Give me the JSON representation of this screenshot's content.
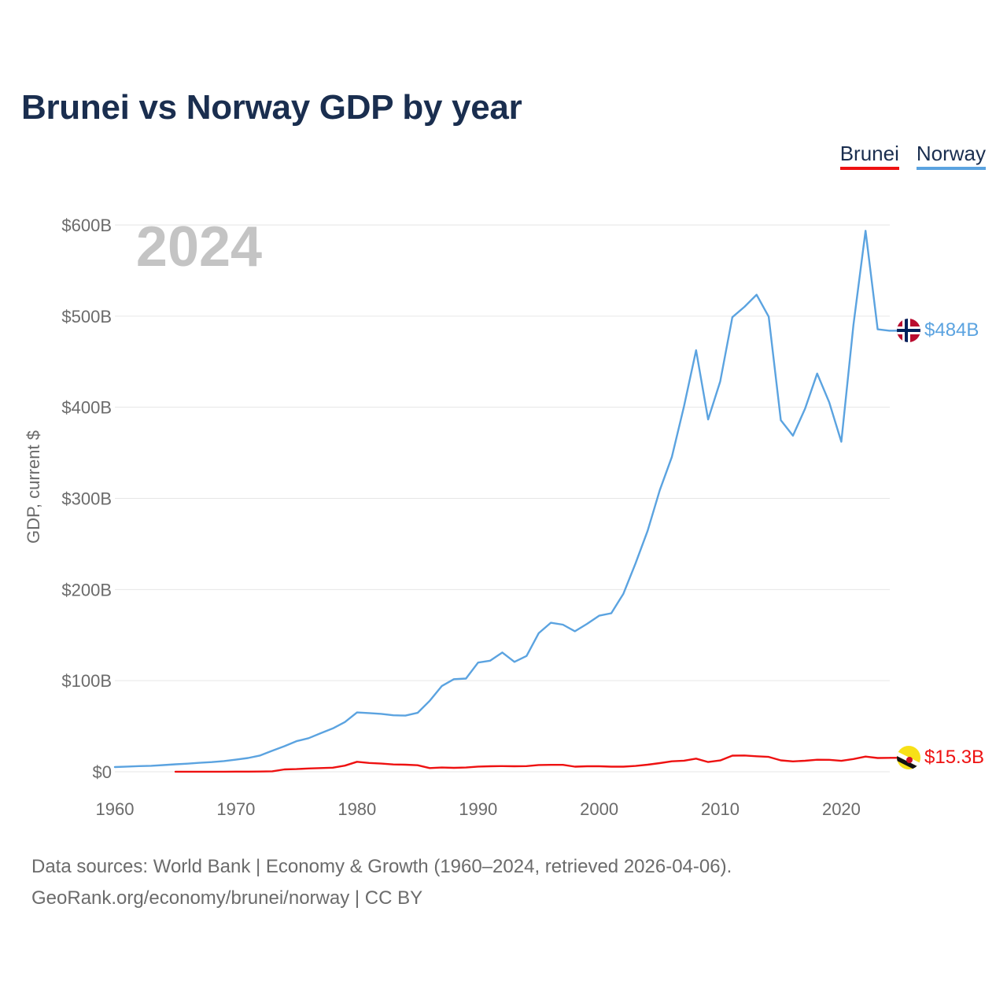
{
  "title": "Brunei vs Norway GDP by year",
  "legend": {
    "brunei": "Brunei",
    "norway": "Norway"
  },
  "footer": {
    "line1": "Data sources: World Bank | Economy & Growth (1960–2024, retrieved 2026-04-06).",
    "line2": "GeoRank.org/economy/brunei/norway | CC BY"
  },
  "colors": {
    "brunei": "#ee1111",
    "norway": "#5ba3e0",
    "grid": "#e6e6e6",
    "text": "#6b6b6b",
    "year": "#c4c4c4"
  },
  "chart_data": {
    "type": "line",
    "title": "Brunei vs Norway GDP by year",
    "year_label": "2024",
    "ylabel": "GDP, current $",
    "xlabel": "",
    "xlim": [
      1960,
      2024
    ],
    "ylim": [
      0,
      600
    ],
    "x_ticks": [
      1960,
      1970,
      1980,
      1990,
      2000,
      2010,
      2020
    ],
    "x_tick_labels": [
      "1960",
      "1970",
      "1980",
      "1990",
      "2000",
      "2010",
      "2020"
    ],
    "y_ticks": [
      0,
      100,
      200,
      300,
      400,
      500,
      600
    ],
    "y_tick_labels": [
      "$0",
      "$100B",
      "$200B",
      "$300B",
      "$400B",
      "$500B",
      "$600B"
    ],
    "units": "billions of current US$",
    "series": [
      {
        "key": "norway",
        "name": "Norway",
        "end_label": "$484B",
        "icon": "norway-flag-icon",
        "x": [
          1960,
          1961,
          1962,
          1963,
          1964,
          1965,
          1966,
          1967,
          1968,
          1969,
          1970,
          1971,
          1972,
          1973,
          1974,
          1975,
          1976,
          1977,
          1978,
          1979,
          1980,
          1981,
          1982,
          1983,
          1984,
          1985,
          1986,
          1987,
          1988,
          1989,
          1990,
          1991,
          1992,
          1993,
          1994,
          1995,
          1996,
          1997,
          1998,
          1999,
          2000,
          2001,
          2002,
          2003,
          2004,
          2005,
          2006,
          2007,
          2008,
          2009,
          2010,
          2011,
          2012,
          2013,
          2014,
          2015,
          2016,
          2017,
          2018,
          2019,
          2020,
          2021,
          2022,
          2023,
          2024
        ],
        "values": [
          5.2,
          5.7,
          6.2,
          6.6,
          7.3,
          8.2,
          8.9,
          9.8,
          10.6,
          11.7,
          13.3,
          15.1,
          17.9,
          23.1,
          28.1,
          33.6,
          36.9,
          42.3,
          47.6,
          54.6,
          65.1,
          64.4,
          63.5,
          62.0,
          61.6,
          64.7,
          77.9,
          94.0,
          101.6,
          102.3,
          119.8,
          121.9,
          130.9,
          120.6,
          127.1,
          152.0,
          163.5,
          161.4,
          154.2,
          162.3,
          171.3,
          174.0,
          195.4,
          228.6,
          264.4,
          308.9,
          345.5,
          400.9,
          462.6,
          386.6,
          428.5,
          498.8,
          510.2,
          523.5,
          499.3,
          385.8,
          368.8,
          398.4,
          437.0,
          405.5,
          362.2,
          490.3,
          593.7,
          485.5,
          484.0
        ]
      },
      {
        "key": "brunei",
        "name": "Brunei",
        "end_label": "$15.3B",
        "icon": "brunei-flag-icon",
        "x": [
          1965,
          1966,
          1967,
          1968,
          1969,
          1970,
          1971,
          1972,
          1973,
          1974,
          1975,
          1976,
          1977,
          1978,
          1979,
          1980,
          1981,
          1982,
          1983,
          1984,
          1985,
          1986,
          1987,
          1988,
          1989,
          1990,
          1991,
          1992,
          1993,
          1994,
          1995,
          1996,
          1997,
          1998,
          1999,
          2000,
          2001,
          2002,
          2003,
          2004,
          2005,
          2006,
          2007,
          2008,
          2009,
          2010,
          2011,
          2012,
          2013,
          2014,
          2015,
          2016,
          2017,
          2018,
          2019,
          2020,
          2021,
          2022,
          2023,
          2024
        ],
        "values": [
          0.1,
          0.1,
          0.1,
          0.1,
          0.1,
          0.2,
          0.2,
          0.3,
          0.5,
          2.6,
          2.9,
          3.6,
          4.1,
          4.5,
          6.7,
          11.0,
          9.7,
          9.0,
          8.0,
          7.8,
          7.2,
          4.1,
          4.7,
          4.3,
          4.7,
          5.7,
          6.0,
          6.2,
          6.0,
          6.2,
          7.4,
          7.6,
          7.6,
          5.6,
          6.0,
          6.0,
          5.6,
          5.6,
          6.4,
          7.8,
          9.5,
          11.5,
          12.2,
          14.4,
          10.7,
          12.4,
          17.7,
          17.9,
          17.0,
          16.3,
          12.5,
          11.4,
          12.1,
          13.2,
          13.1,
          12.0,
          14.0,
          16.7,
          15.1,
          15.3
        ]
      }
    ]
  }
}
